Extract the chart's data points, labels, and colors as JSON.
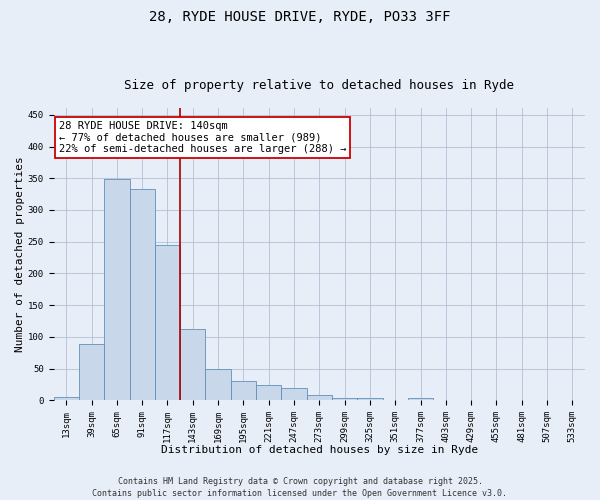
{
  "title_line1": "28, RYDE HOUSE DRIVE, RYDE, PO33 3FF",
  "title_line2": "Size of property relative to detached houses in Ryde",
  "xlabel": "Distribution of detached houses by size in Ryde",
  "ylabel": "Number of detached properties",
  "categories": [
    "13sqm",
    "39sqm",
    "65sqm",
    "91sqm",
    "117sqm",
    "143sqm",
    "169sqm",
    "195sqm",
    "221sqm",
    "247sqm",
    "273sqm",
    "299sqm",
    "325sqm",
    "351sqm",
    "377sqm",
    "403sqm",
    "429sqm",
    "455sqm",
    "481sqm",
    "507sqm",
    "533sqm"
  ],
  "values": [
    5,
    88,
    348,
    333,
    245,
    112,
    49,
    30,
    24,
    19,
    9,
    4,
    4,
    0,
    3,
    0,
    0,
    0,
    0,
    0,
    0
  ],
  "bar_color": "#c8d8ea",
  "bar_edge_color": "#6090b8",
  "grid_color": "#aab8cc",
  "background_color": "#e8eef8",
  "vline_x_index": 5,
  "vline_color": "#aa0000",
  "annotation_line1": "28 RYDE HOUSE DRIVE: 140sqm",
  "annotation_line2": "← 77% of detached houses are smaller (989)",
  "annotation_line3": "22% of semi-detached houses are larger (288) →",
  "annotation_box_color": "#ffffff",
  "annotation_box_edge": "#cc0000",
  "footer_line1": "Contains HM Land Registry data © Crown copyright and database right 2025.",
  "footer_line2": "Contains public sector information licensed under the Open Government Licence v3.0.",
  "ylim": [
    0,
    460
  ],
  "yticks": [
    0,
    50,
    100,
    150,
    200,
    250,
    300,
    350,
    400,
    450
  ],
  "title_fontsize": 10,
  "subtitle_fontsize": 9,
  "axis_label_fontsize": 8,
  "tick_fontsize": 6.5,
  "footer_fontsize": 6,
  "annotation_fontsize": 7.5
}
